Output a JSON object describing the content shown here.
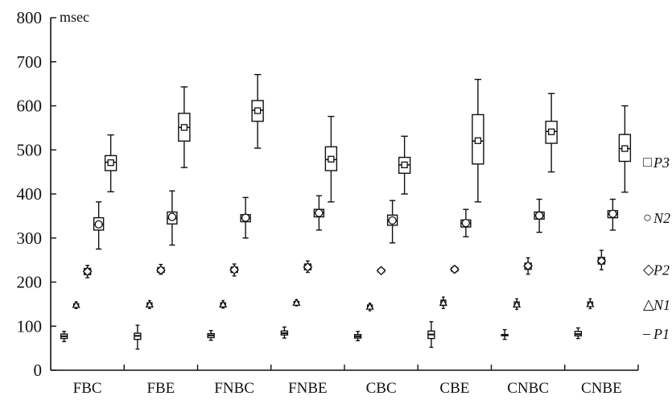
{
  "chart_data": {
    "type": "box",
    "unit": "msec",
    "ylim": [
      0,
      800
    ],
    "yticks": [
      0,
      100,
      200,
      300,
      400,
      500,
      600,
      700,
      800
    ],
    "categories": [
      "FBC",
      "FBE",
      "FNBC",
      "FNBE",
      "CBC",
      "CBE",
      "CNBC",
      "CNBE"
    ],
    "grid": false,
    "legend_position": "right",
    "series": [
      {
        "name": "P1",
        "marker": "dash",
        "boxes": [
          {
            "min": 65,
            "q1": 72,
            "median": 77,
            "q3": 82,
            "max": 88,
            "mean": 77
          },
          {
            "min": 48,
            "q1": 70,
            "median": 78,
            "q3": 84,
            "max": 102,
            "mean": 78
          },
          {
            "min": 68,
            "q1": 74,
            "median": 79,
            "q3": 83,
            "max": 90,
            "mean": 79
          },
          {
            "min": 73,
            "q1": 80,
            "median": 84,
            "q3": 89,
            "max": 98,
            "mean": 84
          },
          {
            "min": 67,
            "q1": 73,
            "median": 77,
            "q3": 81,
            "max": 88,
            "mean": 77
          },
          {
            "min": 52,
            "q1": 72,
            "median": 81,
            "q3": 89,
            "max": 110,
            "mean": 81
          },
          {
            "min": 70,
            "q1": 80,
            "median": 80,
            "q3": 81,
            "max": 92,
            "mean": 80
          },
          {
            "min": 72,
            "q1": 78,
            "median": 82,
            "q3": 88,
            "max": 96,
            "mean": 82
          }
        ]
      },
      {
        "name": "N1",
        "marker": "triangle",
        "boxes": [
          {
            "min": 140,
            "q1": 145,
            "median": 148,
            "q3": 151,
            "max": 155,
            "mean": 148
          },
          {
            "min": 140,
            "q1": 145,
            "median": 149,
            "q3": 153,
            "max": 158,
            "mean": 149
          },
          {
            "min": 141,
            "q1": 145,
            "median": 149,
            "q3": 153,
            "max": 158,
            "mean": 149
          },
          {
            "min": 146,
            "q1": 150,
            "median": 153,
            "q3": 156,
            "max": 160,
            "mean": 153
          },
          {
            "min": 135,
            "q1": 140,
            "median": 144,
            "q3": 148,
            "max": 152,
            "mean": 144
          },
          {
            "min": 140,
            "q1": 147,
            "median": 153,
            "q3": 159,
            "max": 166,
            "mean": 153
          },
          {
            "min": 138,
            "q1": 144,
            "median": 149,
            "q3": 155,
            "max": 162,
            "mean": 149
          },
          {
            "min": 140,
            "q1": 145,
            "median": 150,
            "q3": 155,
            "max": 162,
            "mean": 150
          }
        ]
      },
      {
        "name": "P2",
        "marker": "diamond",
        "boxes": [
          {
            "min": 210,
            "q1": 217,
            "median": 224,
            "q3": 231,
            "max": 238,
            "mean": 224
          },
          {
            "min": 218,
            "q1": 222,
            "median": 227,
            "q3": 233,
            "max": 240,
            "mean": 227
          },
          {
            "min": 214,
            "q1": 222,
            "median": 228,
            "q3": 234,
            "max": 241,
            "mean": 228
          },
          {
            "min": 222,
            "q1": 228,
            "median": 234,
            "q3": 241,
            "max": 248,
            "mean": 234
          },
          {
            "min": 220,
            "q1": 223,
            "median": 226,
            "q3": 229,
            "max": 232,
            "mean": 226
          },
          {
            "min": 222,
            "q1": 225,
            "median": 229,
            "q3": 233,
            "max": 236,
            "mean": 229
          },
          {
            "min": 218,
            "q1": 229,
            "median": 237,
            "q3": 243,
            "max": 255,
            "mean": 237
          },
          {
            "min": 228,
            "q1": 241,
            "median": 248,
            "q3": 256,
            "max": 272,
            "mean": 248
          }
        ]
      },
      {
        "name": "N2",
        "marker": "circle",
        "boxes": [
          {
            "min": 275,
            "q1": 318,
            "median": 330,
            "q3": 346,
            "max": 382,
            "mean": 331
          },
          {
            "min": 284,
            "q1": 332,
            "median": 344,
            "q3": 359,
            "max": 407,
            "mean": 348
          },
          {
            "min": 300,
            "q1": 337,
            "median": 345,
            "q3": 353,
            "max": 392,
            "mean": 346
          },
          {
            "min": 318,
            "q1": 348,
            "median": 357,
            "q3": 365,
            "max": 396,
            "mean": 357
          },
          {
            "min": 289,
            "q1": 329,
            "median": 340,
            "q3": 352,
            "max": 385,
            "mean": 340
          },
          {
            "min": 303,
            "q1": 325,
            "median": 334,
            "q3": 341,
            "max": 365,
            "mean": 334
          },
          {
            "min": 313,
            "q1": 343,
            "median": 351,
            "q3": 359,
            "max": 388,
            "mean": 351
          },
          {
            "min": 318,
            "q1": 346,
            "median": 354,
            "q3": 362,
            "max": 388,
            "mean": 355
          }
        ]
      },
      {
        "name": "P3",
        "marker": "square",
        "boxes": [
          {
            "min": 405,
            "q1": 453,
            "median": 472,
            "q3": 487,
            "max": 534,
            "mean": 471
          },
          {
            "min": 460,
            "q1": 520,
            "median": 551,
            "q3": 583,
            "max": 643,
            "mean": 551
          },
          {
            "min": 504,
            "q1": 565,
            "median": 590,
            "q3": 612,
            "max": 671,
            "mean": 589
          },
          {
            "min": 382,
            "q1": 453,
            "median": 478,
            "q3": 507,
            "max": 576,
            "mean": 479
          },
          {
            "min": 400,
            "q1": 447,
            "median": 466,
            "q3": 483,
            "max": 531,
            "mean": 466
          },
          {
            "min": 382,
            "q1": 468,
            "median": 520,
            "q3": 580,
            "max": 660,
            "mean": 521
          },
          {
            "min": 450,
            "q1": 515,
            "median": 542,
            "q3": 565,
            "max": 628,
            "mean": 541
          },
          {
            "min": 404,
            "q1": 474,
            "median": 503,
            "q3": 535,
            "max": 600,
            "mean": 503
          }
        ]
      }
    ],
    "legend": [
      {
        "name": "P3",
        "symbol": "□"
      },
      {
        "name": "N2",
        "symbol": "○"
      },
      {
        "name": "P2",
        "symbol": "◇"
      },
      {
        "name": "N1",
        "symbol": "△"
      },
      {
        "name": "P1",
        "symbol": "–"
      }
    ]
  }
}
